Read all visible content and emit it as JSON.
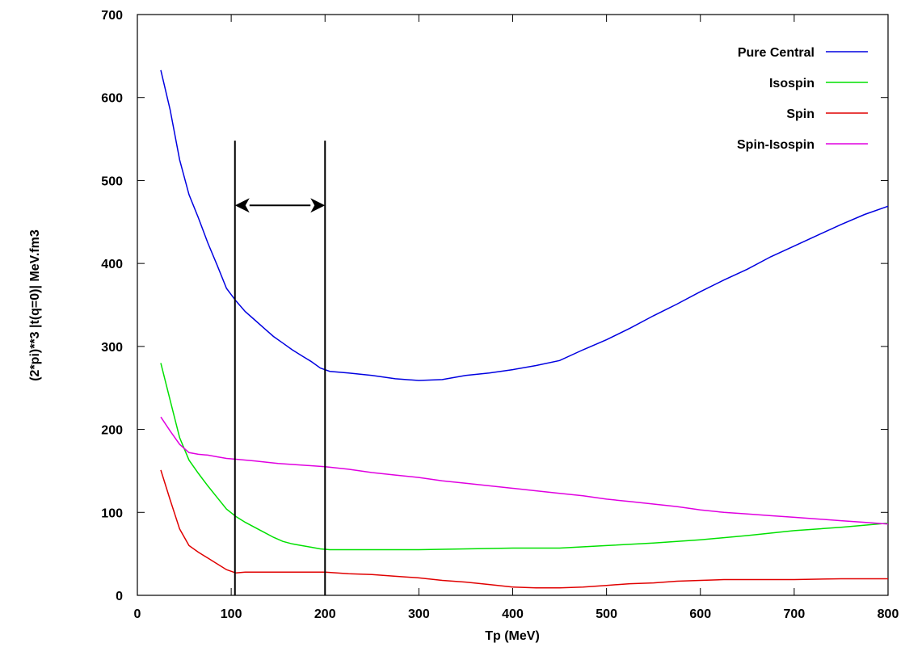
{
  "chart_data": {
    "type": "line",
    "xlabel": "Tp (MeV)",
    "ylabel": "(2*pi)**3 |t(q=0)| MeV.fm3",
    "xlim": [
      0,
      800
    ],
    "ylim": [
      0,
      700
    ],
    "xticks": [
      0,
      100,
      200,
      300,
      400,
      500,
      600,
      700,
      800
    ],
    "yticks": [
      0,
      100,
      200,
      300,
      400,
      500,
      600,
      700
    ],
    "grid": false,
    "legend_position": "top-right",
    "series": [
      {
        "name": "Pure Central",
        "color": "#0000e0",
        "x": [
          25,
          35,
          45,
          55,
          65,
          75,
          85,
          95,
          105,
          115,
          125,
          135,
          145,
          155,
          165,
          175,
          185,
          195,
          205,
          225,
          250,
          275,
          300,
          325,
          350,
          375,
          400,
          425,
          450,
          475,
          500,
          525,
          550,
          575,
          600,
          625,
          650,
          675,
          700,
          725,
          750,
          775,
          800
        ],
        "y": [
          633,
          585,
          525,
          483,
          455,
          425,
          398,
          370,
          355,
          342,
          332,
          322,
          312,
          304,
          296,
          289,
          282,
          274,
          270,
          268,
          265,
          261,
          259,
          260,
          265,
          268,
          272,
          277,
          283,
          296,
          308,
          322,
          337,
          351,
          366,
          380,
          393,
          408,
          421,
          434,
          447,
          459,
          469
        ]
      },
      {
        "name": "Isospin",
        "color": "#00e000",
        "x": [
          25,
          35,
          45,
          55,
          65,
          75,
          85,
          95,
          105,
          115,
          125,
          135,
          145,
          155,
          165,
          175,
          185,
          195,
          205,
          250,
          300,
          350,
          400,
          450,
          500,
          550,
          600,
          650,
          700,
          750,
          800
        ],
        "y": [
          280,
          235,
          190,
          163,
          147,
          132,
          118,
          104,
          95,
          88,
          82,
          76,
          70,
          65,
          62,
          60,
          58,
          56,
          55,
          55,
          55,
          56,
          57,
          57,
          60,
          63,
          67,
          72,
          78,
          82,
          87
        ]
      },
      {
        "name": "Spin",
        "color": "#e00000",
        "x": [
          25,
          35,
          45,
          55,
          65,
          75,
          85,
          95,
          105,
          115,
          125,
          150,
          175,
          200,
          225,
          250,
          275,
          300,
          325,
          350,
          375,
          400,
          425,
          450,
          475,
          500,
          525,
          550,
          575,
          600,
          625,
          650,
          700,
          750,
          800
        ],
        "y": [
          151,
          115,
          80,
          60,
          52,
          45,
          38,
          31,
          27,
          28,
          28,
          28,
          28,
          28,
          26,
          25,
          23,
          21,
          18,
          16,
          13,
          10,
          9,
          9,
          10,
          12,
          14,
          15,
          17,
          18,
          19,
          19,
          19,
          20,
          20
        ]
      },
      {
        "name": "Spin-Isospin",
        "color": "#e000e0",
        "x": [
          25,
          35,
          45,
          55,
          65,
          75,
          85,
          95,
          105,
          125,
          150,
          175,
          200,
          225,
          250,
          275,
          300,
          325,
          350,
          375,
          400,
          425,
          450,
          475,
          500,
          525,
          550,
          575,
          600,
          625,
          650,
          675,
          700,
          725,
          750,
          775,
          800
        ],
        "y": [
          215,
          198,
          182,
          172,
          170,
          169,
          167,
          165,
          164,
          162,
          159,
          157,
          155,
          152,
          148,
          145,
          142,
          138,
          135,
          132,
          129,
          126,
          123,
          120,
          116,
          113,
          110,
          107,
          103,
          100,
          98,
          96,
          94,
          92,
          90,
          88,
          86
        ]
      }
    ],
    "annotations": {
      "vertical_lines_x": [
        104,
        200
      ],
      "vertical_line_top_y": 548,
      "arrow": {
        "x_from": 104,
        "x_to": 200,
        "y": 470,
        "double_headed": true
      }
    }
  }
}
